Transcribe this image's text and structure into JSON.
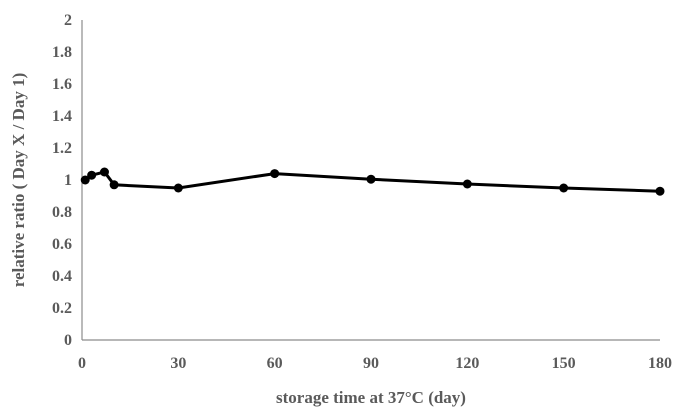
{
  "chart_data": {
    "type": "line",
    "title": "",
    "xlabel": "storage time at 37°C (day)",
    "ylabel": "relative ratio ( Day X / Day 1)",
    "xlim": [
      0,
      180
    ],
    "ylim": [
      0,
      2
    ],
    "xticks": [
      "0",
      "30",
      "60",
      "90",
      "120",
      "150",
      "180"
    ],
    "yticks": [
      "0",
      "0.2",
      "0.4",
      "0.6",
      "0.8",
      "1",
      "1.2",
      "1.4",
      "1.6",
      "1.8",
      "2"
    ],
    "grid": false,
    "legend": "none",
    "line_color": "#000000",
    "series": [
      {
        "x": [
          1,
          3,
          7,
          10,
          30,
          60,
          90,
          120,
          150,
          180
        ],
        "y": [
          1.0,
          1.03,
          1.05,
          0.97,
          0.95,
          1.04,
          1.005,
          0.975,
          0.95,
          0.93
        ]
      }
    ]
  }
}
